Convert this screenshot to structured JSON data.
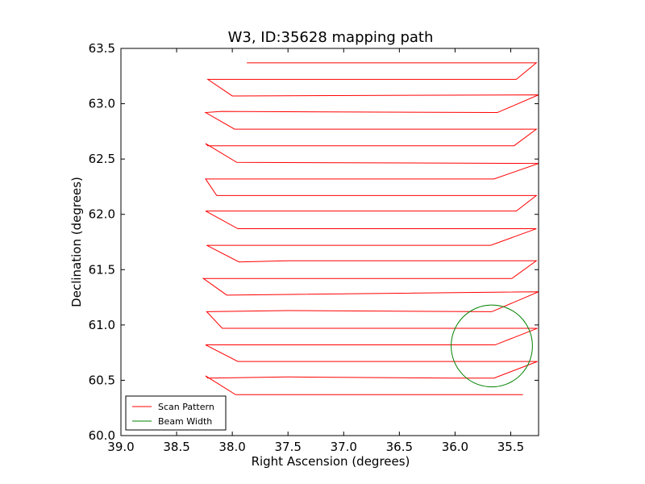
{
  "chart_data": {
    "type": "line",
    "title": "W3, ID:35628 mapping path",
    "xlabel": "Right Ascension (degrees)",
    "ylabel": "Declination (degrees)",
    "xlim": [
      39.0,
      35.25
    ],
    "ylim": [
      60.0,
      63.5
    ],
    "x_inverted": true,
    "xticks": [
      39.0,
      38.5,
      38.0,
      37.5,
      37.0,
      36.5,
      36.0,
      35.5
    ],
    "yticks": [
      60.0,
      60.5,
      61.0,
      61.5,
      62.0,
      62.5,
      63.0,
      63.5
    ],
    "xtick_labels": [
      "39.0",
      "38.5",
      "38.0",
      "37.5",
      "37.0",
      "36.5",
      "36.0",
      "35.5"
    ],
    "ytick_labels": [
      "60.0",
      "60.5",
      "61.0",
      "61.5",
      "62.0",
      "62.5",
      "63.0",
      "63.5"
    ],
    "grid": false,
    "legend_position": "lower-left",
    "series": [
      {
        "name": "Scan Pattern",
        "color": "#ff0000",
        "points": [
          [
            35.39,
            60.37
          ],
          [
            37.97,
            60.37
          ],
          [
            38.24,
            60.54
          ],
          [
            38.22,
            60.52
          ],
          [
            37.5,
            60.53
          ],
          [
            36.0,
            60.52
          ],
          [
            35.65,
            60.52
          ],
          [
            35.26,
            60.67
          ],
          [
            37.95,
            60.67
          ],
          [
            38.24,
            60.82
          ],
          [
            35.64,
            60.82
          ],
          [
            35.26,
            60.97
          ],
          [
            38.09,
            60.97
          ],
          [
            38.23,
            61.12
          ],
          [
            37.5,
            61.13
          ],
          [
            35.67,
            61.12
          ],
          [
            35.25,
            61.3
          ],
          [
            38.05,
            61.27
          ],
          [
            38.26,
            61.42
          ],
          [
            35.49,
            61.42
          ],
          [
            35.27,
            61.58
          ],
          [
            37.5,
            61.58
          ],
          [
            37.94,
            61.57
          ],
          [
            38.23,
            61.72
          ],
          [
            35.68,
            61.72
          ],
          [
            35.27,
            61.87
          ],
          [
            37.95,
            61.87
          ],
          [
            38.24,
            62.03
          ],
          [
            35.45,
            62.03
          ],
          [
            35.27,
            62.17
          ],
          [
            38.14,
            62.17
          ],
          [
            38.24,
            62.32
          ],
          [
            35.65,
            62.32
          ],
          [
            35.25,
            62.46
          ],
          [
            37.96,
            62.47
          ],
          [
            38.24,
            62.64
          ],
          [
            38.22,
            62.62
          ],
          [
            35.47,
            62.62
          ],
          [
            35.27,
            62.77
          ],
          [
            37.98,
            62.77
          ],
          [
            38.24,
            62.92
          ],
          [
            38.1,
            62.93
          ],
          [
            35.62,
            62.92
          ],
          [
            35.25,
            63.08
          ],
          [
            38.0,
            63.07
          ],
          [
            38.22,
            63.22
          ],
          [
            35.45,
            63.22
          ],
          [
            35.27,
            63.37
          ],
          [
            37.87,
            63.37
          ]
        ]
      },
      {
        "name": "Beam Width",
        "color": "#008000",
        "shape": "circle",
        "center": [
          35.67,
          60.81
        ],
        "radius_ra": 0.365,
        "radius_dec": 0.37
      }
    ],
    "legend": [
      {
        "label": "Scan Pattern",
        "color": "#ff0000"
      },
      {
        "label": "Beam Width",
        "color": "#008000"
      }
    ]
  }
}
